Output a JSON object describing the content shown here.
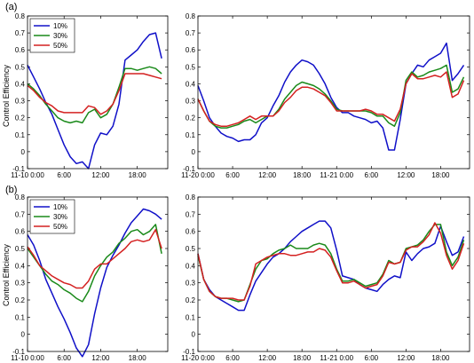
{
  "colors": {
    "s10": "#1010c8",
    "s30": "#1a8a1a",
    "s50": "#d42020"
  },
  "ylabel": "Control Efficiency",
  "chart_data": [
    {
      "panel": "(a)",
      "part": "left",
      "type": "line",
      "xlim": [
        0,
        23
      ],
      "ylim": [
        -0.1,
        0.8
      ],
      "yticks": [
        "-0.1",
        "0",
        "0.1",
        "0.2",
        "0.3",
        "0.4",
        "0.5",
        "0.6",
        "0.7",
        "0.8"
      ],
      "xticks": [
        {
          "x": 0,
          "label": "11-10 0:00"
        },
        {
          "x": 6,
          "label": "6:00"
        },
        {
          "x": 12,
          "label": "12:00"
        },
        {
          "x": 18,
          "label": "18:00"
        }
      ],
      "legend": [
        "10%",
        "30%",
        "50%"
      ],
      "series": [
        {
          "name": "10%",
          "values": [
            0.51,
            0.44,
            0.37,
            0.29,
            0.22,
            0.13,
            0.04,
            -0.03,
            -0.07,
            -0.06,
            -0.1,
            0.04,
            0.11,
            0.1,
            0.15,
            0.28,
            0.54,
            0.57,
            0.6,
            0.65,
            0.69,
            0.7,
            0.55
          ]
        },
        {
          "name": "30%",
          "values": [
            0.4,
            0.37,
            0.33,
            0.28,
            0.24,
            0.2,
            0.18,
            0.17,
            0.18,
            0.17,
            0.23,
            0.25,
            0.2,
            0.22,
            0.28,
            0.38,
            0.49,
            0.49,
            0.48,
            0.49,
            0.5,
            0.49,
            0.46
          ]
        },
        {
          "name": "50%",
          "values": [
            0.39,
            0.36,
            0.32,
            0.29,
            0.27,
            0.24,
            0.23,
            0.23,
            0.23,
            0.23,
            0.27,
            0.26,
            0.22,
            0.24,
            0.28,
            0.36,
            0.46,
            0.46,
            0.46,
            0.46,
            0.45,
            0.44,
            0.43
          ]
        }
      ]
    },
    {
      "panel": "(a)",
      "part": "right",
      "type": "line",
      "xlim": [
        0,
        47
      ],
      "ylim": [
        -0.1,
        0.8
      ],
      "yticks": [
        "-0.1",
        "0",
        "0.1",
        "0.2",
        "0.3",
        "0.4",
        "0.5",
        "0.6",
        "0.7",
        "0.8"
      ],
      "xticks": [
        {
          "x": 0,
          "label": "11-20 0:00"
        },
        {
          "x": 6,
          "label": "6:00"
        },
        {
          "x": 12,
          "label": "12:00"
        },
        {
          "x": 18,
          "label": "18:00"
        },
        {
          "x": 24,
          "label": "11-21 0:00"
        },
        {
          "x": 30,
          "label": "6:00"
        },
        {
          "x": 36,
          "label": "12:00"
        },
        {
          "x": 42,
          "label": "18:00"
        }
      ],
      "series": [
        {
          "name": "10%",
          "values": [
            0.39,
            0.3,
            0.2,
            0.15,
            0.11,
            0.09,
            0.08,
            0.06,
            0.07,
            0.07,
            0.1,
            0.17,
            0.2,
            0.27,
            0.33,
            0.41,
            0.47,
            0.51,
            0.54,
            0.53,
            0.51,
            0.46,
            0.4,
            0.32,
            0.26,
            0.23,
            0.23,
            0.21,
            0.2,
            0.19,
            0.17,
            0.18,
            0.14,
            0.01,
            0.01,
            0.19,
            0.4,
            0.46,
            0.51,
            0.5,
            0.54,
            0.56,
            0.58,
            0.64,
            0.42,
            0.46,
            0.51
          ]
        },
        {
          "name": "30%",
          "values": [
            0.31,
            0.24,
            0.18,
            0.15,
            0.14,
            0.14,
            0.15,
            0.16,
            0.18,
            0.19,
            0.17,
            0.19,
            0.21,
            0.21,
            0.25,
            0.31,
            0.35,
            0.39,
            0.41,
            0.4,
            0.39,
            0.37,
            0.34,
            0.3,
            0.25,
            0.24,
            0.24,
            0.24,
            0.24,
            0.24,
            0.23,
            0.21,
            0.21,
            0.17,
            0.15,
            0.23,
            0.42,
            0.47,
            0.44,
            0.45,
            0.47,
            0.48,
            0.49,
            0.51,
            0.35,
            0.37,
            0.44
          ]
        },
        {
          "name": "50%",
          "values": [
            0.31,
            0.24,
            0.18,
            0.16,
            0.15,
            0.15,
            0.16,
            0.17,
            0.19,
            0.21,
            0.19,
            0.21,
            0.21,
            0.21,
            0.24,
            0.29,
            0.32,
            0.36,
            0.38,
            0.38,
            0.37,
            0.35,
            0.33,
            0.29,
            0.24,
            0.24,
            0.24,
            0.24,
            0.24,
            0.25,
            0.24,
            0.22,
            0.22,
            0.2,
            0.18,
            0.25,
            0.4,
            0.46,
            0.43,
            0.43,
            0.44,
            0.45,
            0.44,
            0.47,
            0.32,
            0.34,
            0.42
          ]
        }
      ]
    },
    {
      "panel": "(b)",
      "part": "left",
      "type": "line",
      "xlim": [
        0,
        23
      ],
      "ylim": [
        -0.1,
        0.8
      ],
      "yticks": [
        "-0.1",
        "0",
        "0.1",
        "0.2",
        "0.3",
        "0.4",
        "0.5",
        "0.6",
        "0.7",
        "0.8"
      ],
      "xticks": [
        {
          "x": 0,
          "label": "11-10 0:00"
        },
        {
          "x": 6,
          "label": "6:00"
        },
        {
          "x": 12,
          "label": "12:00"
        },
        {
          "x": 18,
          "label": "18:00"
        }
      ],
      "legend": [
        "10%",
        "30%",
        "50%"
      ],
      "series": [
        {
          "name": "10%",
          "values": [
            0.58,
            0.52,
            0.43,
            0.32,
            0.24,
            0.16,
            0.09,
            0.01,
            -0.08,
            -0.13,
            -0.06,
            0.12,
            0.27,
            0.39,
            0.46,
            0.52,
            0.59,
            0.65,
            0.69,
            0.73,
            0.72,
            0.7,
            0.67
          ]
        },
        {
          "name": "30%",
          "values": [
            0.5,
            0.45,
            0.4,
            0.35,
            0.31,
            0.29,
            0.26,
            0.24,
            0.21,
            0.19,
            0.25,
            0.34,
            0.4,
            0.45,
            0.48,
            0.53,
            0.56,
            0.6,
            0.61,
            0.58,
            0.6,
            0.64,
            0.47
          ]
        },
        {
          "name": "50%",
          "values": [
            0.51,
            0.46,
            0.4,
            0.37,
            0.34,
            0.32,
            0.3,
            0.29,
            0.27,
            0.27,
            0.31,
            0.38,
            0.41,
            0.41,
            0.44,
            0.47,
            0.5,
            0.54,
            0.55,
            0.54,
            0.55,
            0.61,
            0.5
          ]
        }
      ]
    },
    {
      "panel": "(b)",
      "part": "right",
      "type": "line",
      "xlim": [
        0,
        47
      ],
      "ylim": [
        -0.1,
        0.8
      ],
      "yticks": [
        "-0.1",
        "0",
        "0.1",
        "0.2",
        "0.3",
        "0.4",
        "0.5",
        "0.6",
        "0.7",
        "0.8"
      ],
      "xticks": [
        {
          "x": 0,
          "label": "11-20 0:00"
        },
        {
          "x": 6,
          "label": "6:00"
        },
        {
          "x": 12,
          "label": "12:00"
        },
        {
          "x": 18,
          "label": "18:00"
        },
        {
          "x": 24,
          "label": "11-21 0:00"
        },
        {
          "x": 30,
          "label": "6:00"
        },
        {
          "x": 36,
          "label": "12:00"
        },
        {
          "x": 42,
          "label": "18:00"
        }
      ],
      "series": [
        {
          "name": "10%",
          "values": [
            0.47,
            0.32,
            0.26,
            0.22,
            0.2,
            0.18,
            0.16,
            0.14,
            0.14,
            0.23,
            0.31,
            0.36,
            0.41,
            0.45,
            0.47,
            0.5,
            0.54,
            0.57,
            0.6,
            0.62,
            0.64,
            0.66,
            0.66,
            0.62,
            0.49,
            0.34,
            0.33,
            0.32,
            0.29,
            0.27,
            0.26,
            0.25,
            0.29,
            0.32,
            0.34,
            0.33,
            0.48,
            0.43,
            0.47,
            0.5,
            0.51,
            0.53,
            0.63,
            0.54,
            0.46,
            0.48,
            0.57
          ]
        },
        {
          "name": "30%",
          "values": [
            0.46,
            0.32,
            0.25,
            0.22,
            0.21,
            0.21,
            0.2,
            0.19,
            0.2,
            0.29,
            0.38,
            0.43,
            0.44,
            0.47,
            0.49,
            0.5,
            0.52,
            0.5,
            0.5,
            0.5,
            0.52,
            0.53,
            0.52,
            0.47,
            0.38,
            0.31,
            0.31,
            0.32,
            0.3,
            0.28,
            0.29,
            0.3,
            0.35,
            0.43,
            0.41,
            0.42,
            0.5,
            0.51,
            0.52,
            0.55,
            0.6,
            0.64,
            0.64,
            0.48,
            0.4,
            0.45,
            0.55
          ]
        },
        {
          "name": "50%",
          "values": [
            0.47,
            0.32,
            0.25,
            0.22,
            0.21,
            0.21,
            0.21,
            0.2,
            0.2,
            0.28,
            0.41,
            0.43,
            0.45,
            0.46,
            0.47,
            0.47,
            0.46,
            0.46,
            0.47,
            0.48,
            0.48,
            0.5,
            0.49,
            0.45,
            0.37,
            0.3,
            0.3,
            0.31,
            0.29,
            0.27,
            0.28,
            0.29,
            0.34,
            0.42,
            0.41,
            0.42,
            0.49,
            0.51,
            0.51,
            0.54,
            0.58,
            0.65,
            0.59,
            0.46,
            0.38,
            0.43,
            0.53
          ]
        }
      ]
    }
  ]
}
